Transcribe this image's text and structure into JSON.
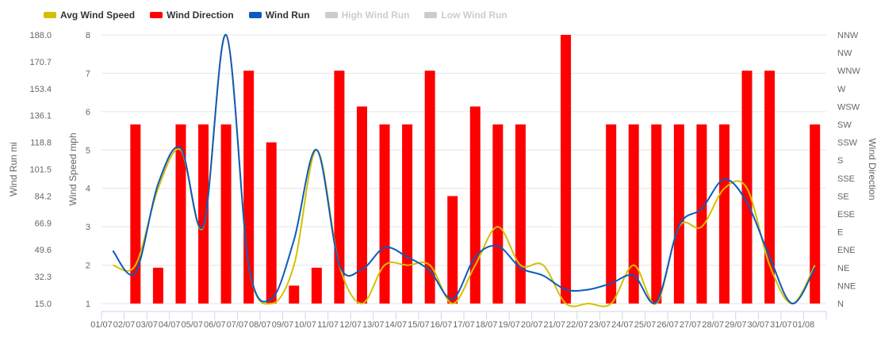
{
  "chart_data": {
    "type": "bar",
    "legend": [
      {
        "name": "Avg Wind Speed",
        "color": "#d4c000",
        "hidden": false
      },
      {
        "name": "Wind Direction",
        "color": "#ff0000",
        "hidden": false
      },
      {
        "name": "Wind Run",
        "color": "#0d5bbd",
        "hidden": false
      },
      {
        "name": "High Wind Run",
        "color": "#cccccc",
        "hidden": true
      },
      {
        "name": "Low Wind Run",
        "color": "#cccccc",
        "hidden": true
      }
    ],
    "categories": [
      "01/07",
      "02/07",
      "03/07",
      "04/07",
      "05/07",
      "06/07",
      "07/07",
      "08/07",
      "09/07",
      "10/07",
      "11/07",
      "12/07",
      "13/07",
      "14/07",
      "15/07",
      "16/07",
      "17/07",
      "18/07",
      "19/07",
      "20/07",
      "21/07",
      "22/07",
      "23/07",
      "24/07",
      "25/07",
      "26/07",
      "27/07",
      "28/07",
      "29/07",
      "30/07",
      "31/07",
      "01/08"
    ],
    "y_axes": {
      "wind_run": {
        "label": "Wind Run mi",
        "ticks": [
          "188.0",
          "170.7",
          "153.4",
          "136.1",
          "118.8",
          "101.5",
          "84.2",
          "66.9",
          "49.6",
          "32.3",
          "15.0"
        ]
      },
      "wind_speed": {
        "label": "Wind Speed mph",
        "ticks": [
          "8",
          "7",
          "6",
          "5",
          "4",
          "3",
          "2",
          "1"
        ],
        "ylim": [
          1,
          8
        ]
      },
      "wind_direction": {
        "label": "Wind Direction",
        "ticks": [
          "NNW",
          "NW",
          "WNW",
          "W",
          "WSW",
          "SW",
          "SSW",
          "S",
          "SSE",
          "SE",
          "ESE",
          "E",
          "ENE",
          "NE",
          "NNE",
          "N"
        ]
      }
    },
    "series": [
      {
        "name": "Wind Direction",
        "type": "bar",
        "axis": "direction",
        "values": [
          null,
          "SW",
          "NE",
          "SW",
          "SW",
          "SW",
          "WNW",
          "SSW",
          "NNE",
          "NE",
          "WNW",
          "WSW",
          "SW",
          "SW",
          "WNW",
          "SE",
          "WSW",
          "SW",
          "SW",
          null,
          "NNW",
          null,
          "SW",
          "SW",
          "SW",
          "SW",
          "SW",
          "SW",
          "WNW",
          "WNW",
          null,
          "SW"
        ]
      },
      {
        "name": "Avg Wind Speed",
        "type": "line",
        "axis": "speed",
        "values": [
          2,
          2,
          4,
          5,
          3,
          8,
          2,
          1,
          2,
          5,
          2,
          1,
          2,
          2,
          2,
          1,
          2,
          3,
          2,
          2,
          1,
          1,
          1,
          2,
          1,
          3,
          3,
          4,
          4,
          2,
          1,
          2
        ]
      },
      {
        "name": "Wind Run",
        "type": "line",
        "axis": "run",
        "values": [
          49,
          35,
          92,
          115,
          65,
          188,
          40,
          18,
          56,
          114,
          40,
          37,
          51,
          45,
          36,
          18,
          45,
          52,
          38,
          33,
          24,
          24,
          28,
          33,
          16,
          65,
          76,
          95,
          80,
          45,
          15,
          38
        ]
      }
    ]
  }
}
